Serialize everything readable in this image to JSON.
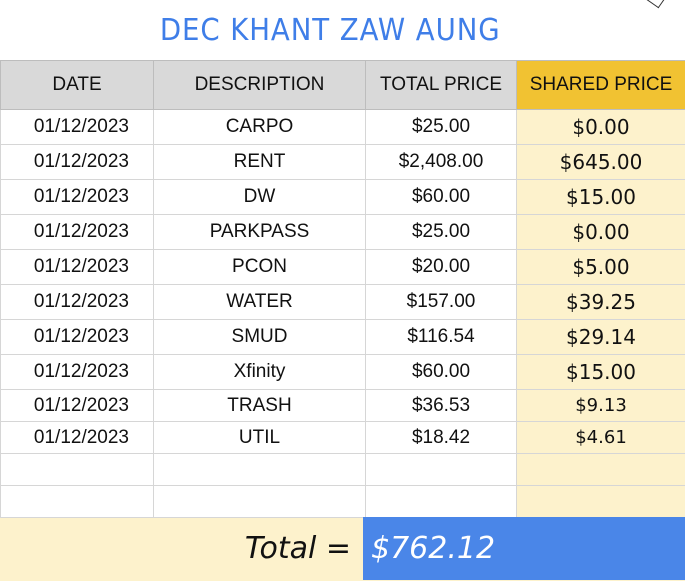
{
  "sheet": {
    "title": "DEC KHANT ZAW AUNG",
    "headers": {
      "date": "DATE",
      "description": "DESCRIPTION",
      "total": "TOTAL PRICE",
      "shared": "SHARED PRICE"
    },
    "rows": [
      {
        "date": "01/12/2023",
        "description": "CARPO",
        "total": "$25.00",
        "shared": "$0.00"
      },
      {
        "date": "01/12/2023",
        "description": "RENT",
        "total": "$2,408.00",
        "shared": "$645.00"
      },
      {
        "date": "01/12/2023",
        "description": "DW",
        "total": "$60.00",
        "shared": "$15.00"
      },
      {
        "date": "01/12/2023",
        "description": "PARKPASS",
        "total": "$25.00",
        "shared": "$0.00"
      },
      {
        "date": "01/12/2023",
        "description": "PCON",
        "total": "$20.00",
        "shared": "$5.00"
      },
      {
        "date": "01/12/2023",
        "description": "WATER",
        "total": "$157.00",
        "shared": "$39.25"
      },
      {
        "date": "01/12/2023",
        "description": "SMUD",
        "total": "$116.54",
        "shared": "$29.14"
      },
      {
        "date": "01/12/2023",
        "description": "Xfinity",
        "total": "$60.00",
        "shared": "$15.00"
      },
      {
        "date": "01/12/2023",
        "description": "TRASH",
        "total": "$36.53",
        "shared": "$9.13"
      },
      {
        "date": "01/12/2023",
        "description": "UTIL",
        "total": "$18.42",
        "shared": "$4.61"
      }
    ],
    "total_label": "Total =",
    "total_value": "$762.12"
  },
  "colors": {
    "title": "#3f7ee8",
    "header_bg": "#d9d9d9",
    "shared_header_bg": "#f1c232",
    "shared_column_bg": "#fdf2cc",
    "total_value_bg": "#4a86e8"
  }
}
